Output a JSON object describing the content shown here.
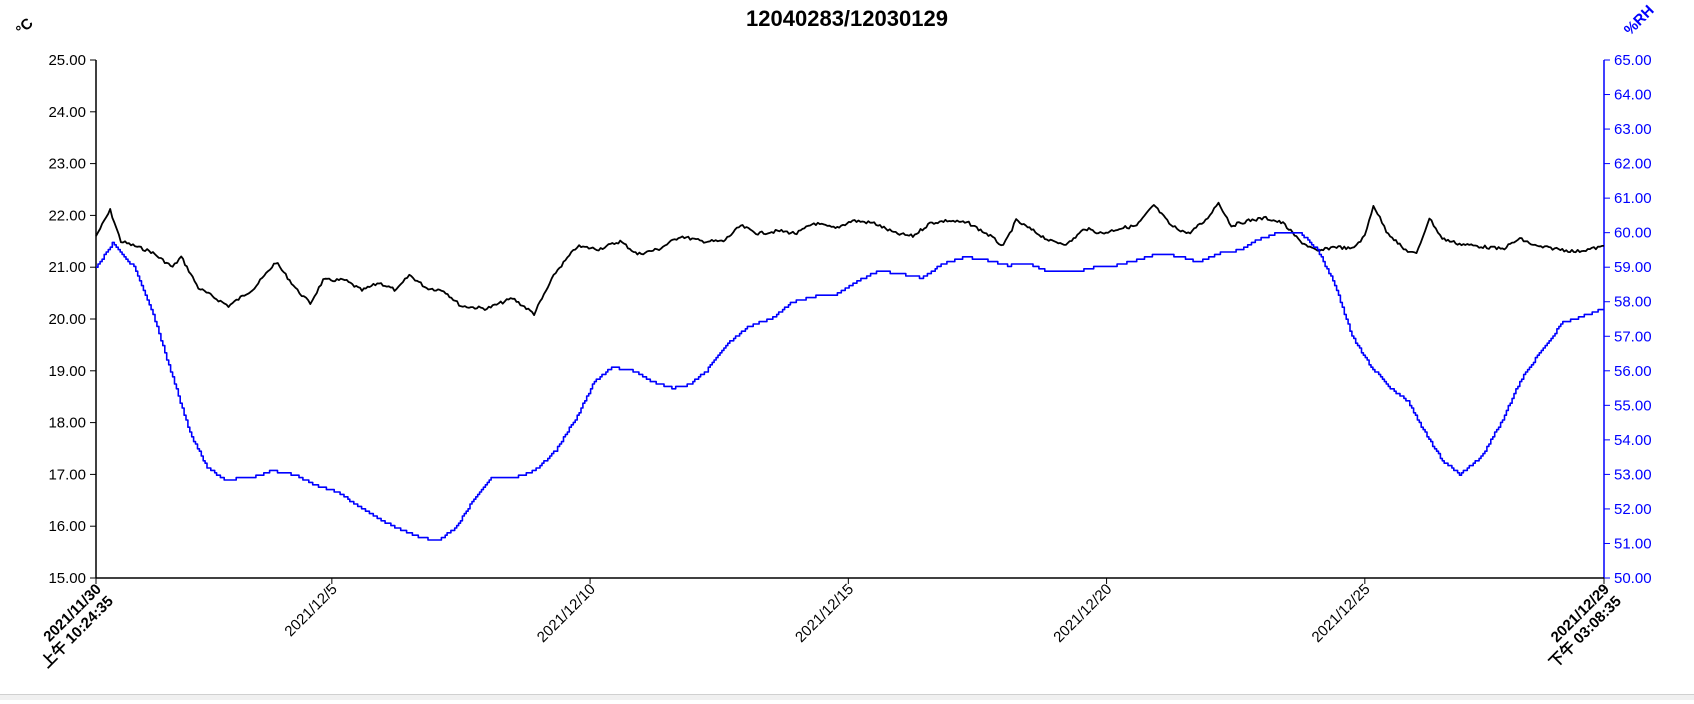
{
  "chart_data": {
    "type": "line",
    "title": "12040283/12030129",
    "y_left": {
      "unit": "°C",
      "range": [
        15,
        25
      ],
      "ticks": [
        "15.00",
        "16.00",
        "17.00",
        "18.00",
        "19.00",
        "20.00",
        "21.00",
        "22.00",
        "23.00",
        "24.00",
        "25.00"
      ],
      "color": "#000000"
    },
    "y_right": {
      "unit": "%RH",
      "range": [
        50,
        65
      ],
      "ticks": [
        "50.00",
        "51.00",
        "52.00",
        "53.00",
        "54.00",
        "55.00",
        "56.00",
        "57.00",
        "58.00",
        "59.00",
        "60.00",
        "61.00",
        "62.00",
        "63.00",
        "64.00",
        "65.00"
      ],
      "color": "#0000ff"
    },
    "x_range": [
      "2021/11/30 10:24:35",
      "2021/12/29 15:08:35"
    ],
    "x_labels": [
      {
        "date": "2021/11/30 10:24:35",
        "line1": "2021/11/30",
        "line2": "上午 10:24:35",
        "bold": true
      },
      {
        "date": "2021/12/5 00:00:00",
        "line1": "2021/12/5",
        "line2": "",
        "bold": false
      },
      {
        "date": "2021/12/10 00:00:00",
        "line1": "2021/12/10",
        "line2": "",
        "bold": false
      },
      {
        "date": "2021/12/15 00:00:00",
        "line1": "2021/12/15",
        "line2": "",
        "bold": false
      },
      {
        "date": "2021/12/20 00:00:00",
        "line1": "2021/12/20",
        "line2": "",
        "bold": false
      },
      {
        "date": "2021/12/25 00:00:00",
        "line1": "2021/12/25",
        "line2": "",
        "bold": false
      },
      {
        "date": "2021/12/29 15:08:35",
        "line1": "2021/12/29",
        "line2": "下午 03:08:35",
        "bold": true
      }
    ],
    "series": [
      {
        "axis": "left",
        "color": "#000000",
        "points": [
          [
            "2021/11/30 10:24:35",
            21.6
          ],
          [
            "2021/11/30 17:00:00",
            22.1
          ],
          [
            "2021/11/30 22:00:00",
            21.5
          ],
          [
            "2021/12/1 12:00:00",
            21.3
          ],
          [
            "2021/12/1 22:00:00",
            21.0
          ],
          [
            "2021/12/2 02:00:00",
            21.2
          ],
          [
            "2021/12/2 10:00:00",
            20.6
          ],
          [
            "2021/12/3 00:00:00",
            20.25
          ],
          [
            "2021/12/3 12:00:00",
            20.6
          ],
          [
            "2021/12/3 22:00:00",
            21.1
          ],
          [
            "2021/12/4 08:00:00",
            20.55
          ],
          [
            "2021/12/4 14:00:00",
            20.3
          ],
          [
            "2021/12/4 20:00:00",
            20.75
          ],
          [
            "2021/12/5 06:00:00",
            20.75
          ],
          [
            "2021/12/5 14:00:00",
            20.55
          ],
          [
            "2021/12/5 22:00:00",
            20.7
          ],
          [
            "2021/12/6 06:00:00",
            20.55
          ],
          [
            "2021/12/6 12:00:00",
            20.85
          ],
          [
            "2021/12/6 20:00:00",
            20.6
          ],
          [
            "2021/12/7 04:00:00",
            20.55
          ],
          [
            "2021/12/7 12:00:00",
            20.25
          ],
          [
            "2021/12/8 00:00:00",
            20.2
          ],
          [
            "2021/12/8 12:00:00",
            20.4
          ],
          [
            "2021/12/8 22:00:00",
            20.1
          ],
          [
            "2021/12/9 08:00:00",
            20.9
          ],
          [
            "2021/12/9 18:00:00",
            21.4
          ],
          [
            "2021/12/10 04:00:00",
            21.35
          ],
          [
            "2021/12/10 14:00:00",
            21.5
          ],
          [
            "2021/12/10 22:00:00",
            21.25
          ],
          [
            "2021/12/11 08:00:00",
            21.35
          ],
          [
            "2021/12/11 18:00:00",
            21.6
          ],
          [
            "2021/12/12 04:00:00",
            21.5
          ],
          [
            "2021/12/12 14:00:00",
            21.5
          ],
          [
            "2021/12/12 22:00:00",
            21.8
          ],
          [
            "2021/12/13 06:00:00",
            21.65
          ],
          [
            "2021/12/13 16:00:00",
            21.7
          ],
          [
            "2021/12/14 00:00:00",
            21.65
          ],
          [
            "2021/12/14 08:00:00",
            21.85
          ],
          [
            "2021/12/14 18:00:00",
            21.75
          ],
          [
            "2021/12/15 02:00:00",
            21.9
          ],
          [
            "2021/12/15 12:00:00",
            21.85
          ],
          [
            "2021/12/15 22:00:00",
            21.65
          ],
          [
            "2021/12/16 06:00:00",
            21.6
          ],
          [
            "2021/12/16 14:00:00",
            21.85
          ],
          [
            "2021/12/16 22:00:00",
            21.9
          ],
          [
            "2021/12/17 08:00:00",
            21.85
          ],
          [
            "2021/12/17 18:00:00",
            21.6
          ],
          [
            "2021/12/18 00:00:00",
            21.4
          ],
          [
            "2021/12/18 06:00:00",
            21.9
          ],
          [
            "2021/12/18 14:00:00",
            21.7
          ],
          [
            "2021/12/18 22:00:00",
            21.5
          ],
          [
            "2021/12/19 06:00:00",
            21.45
          ],
          [
            "2021/12/19 14:00:00",
            21.75
          ],
          [
            "2021/12/19 22:00:00",
            21.65
          ],
          [
            "2021/12/20 06:00:00",
            21.75
          ],
          [
            "2021/12/20 14:00:00",
            21.8
          ],
          [
            "2021/12/20 22:00:00",
            22.2
          ],
          [
            "2021/12/21 06:00:00",
            21.8
          ],
          [
            "2021/12/21 14:00:00",
            21.65
          ],
          [
            "2021/12/21 22:00:00",
            21.9
          ],
          [
            "2021/12/22 04:00:00",
            22.25
          ],
          [
            "2021/12/22 10:00:00",
            21.8
          ],
          [
            "2021/12/22 18:00:00",
            21.9
          ],
          [
            "2021/12/23 02:00:00",
            21.95
          ],
          [
            "2021/12/23 10:00:00",
            21.85
          ],
          [
            "2021/12/23 18:00:00",
            21.5
          ],
          [
            "2021/12/24 02:00:00",
            21.3
          ],
          [
            "2021/12/24 10:00:00",
            21.4
          ],
          [
            "2021/12/24 18:00:00",
            21.35
          ],
          [
            "2021/12/25 00:00:00",
            21.6
          ],
          [
            "2021/12/25 04:00:00",
            22.2
          ],
          [
            "2021/12/25 10:00:00",
            21.7
          ],
          [
            "2021/12/25 18:00:00",
            21.35
          ],
          [
            "2021/12/26 00:00:00",
            21.25
          ],
          [
            "2021/12/26 06:00:00",
            21.95
          ],
          [
            "2021/12/26 12:00:00",
            21.55
          ],
          [
            "2021/12/26 20:00:00",
            21.45
          ],
          [
            "2021/12/27 06:00:00",
            21.4
          ],
          [
            "2021/12/27 16:00:00",
            21.35
          ],
          [
            "2021/12/28 00:00:00",
            21.55
          ],
          [
            "2021/12/28 08:00:00",
            21.4
          ],
          [
            "2021/12/28 18:00:00",
            21.35
          ],
          [
            "2021/12/29 02:00:00",
            21.3
          ],
          [
            "2021/12/29 15:08:35",
            21.4
          ]
        ]
      },
      {
        "axis": "right",
        "color": "#0000ff",
        "points": [
          [
            "2021/11/30 10:24:35",
            59.0
          ],
          [
            "2021/11/30 18:00:00",
            59.7
          ],
          [
            "2021/12/1 04:00:00",
            59.0
          ],
          [
            "2021/12/1 12:00:00",
            57.8
          ],
          [
            "2021/12/1 22:00:00",
            55.8
          ],
          [
            "2021/12/2 06:00:00",
            54.2
          ],
          [
            "2021/12/2 14:00:00",
            53.2
          ],
          [
            "2021/12/2 22:00:00",
            52.85
          ],
          [
            "2021/12/3 10:00:00",
            52.9
          ],
          [
            "2021/12/3 20:00:00",
            53.1
          ],
          [
            "2021/12/4 06:00:00",
            53.0
          ],
          [
            "2021/12/4 16:00:00",
            52.7
          ],
          [
            "2021/12/5 02:00:00",
            52.5
          ],
          [
            "2021/12/5 12:00:00",
            52.1
          ],
          [
            "2021/12/5 22:00:00",
            51.7
          ],
          [
            "2021/12/6 08:00:00",
            51.4
          ],
          [
            "2021/12/6 18:00:00",
            51.15
          ],
          [
            "2021/12/7 02:00:00",
            51.1
          ],
          [
            "2021/12/7 10:00:00",
            51.5
          ],
          [
            "2021/12/7 18:00:00",
            52.3
          ],
          [
            "2021/12/8 02:00:00",
            52.9
          ],
          [
            "2021/12/8 12:00:00",
            52.9
          ],
          [
            "2021/12/8 22:00:00",
            53.1
          ],
          [
            "2021/12/9 08:00:00",
            53.7
          ],
          [
            "2021/12/9 18:00:00",
            54.7
          ],
          [
            "2021/12/10 02:00:00",
            55.7
          ],
          [
            "2021/12/10 10:00:00",
            56.1
          ],
          [
            "2021/12/10 20:00:00",
            56.0
          ],
          [
            "2021/12/11 04:00:00",
            55.7
          ],
          [
            "2021/12/11 14:00:00",
            55.5
          ],
          [
            "2021/12/11 22:00:00",
            55.6
          ],
          [
            "2021/12/12 06:00:00",
            56.0
          ],
          [
            "2021/12/12 16:00:00",
            56.8
          ],
          [
            "2021/12/13 02:00:00",
            57.3
          ],
          [
            "2021/12/13 12:00:00",
            57.5
          ],
          [
            "2021/12/13 22:00:00",
            58.0
          ],
          [
            "2021/12/14 08:00:00",
            58.15
          ],
          [
            "2021/12/14 18:00:00",
            58.2
          ],
          [
            "2021/12/15 04:00:00",
            58.6
          ],
          [
            "2021/12/15 14:00:00",
            58.9
          ],
          [
            "2021/12/16 00:00:00",
            58.8
          ],
          [
            "2021/12/16 10:00:00",
            58.7
          ],
          [
            "2021/12/16 20:00:00",
            59.1
          ],
          [
            "2021/12/17 06:00:00",
            59.3
          ],
          [
            "2021/12/17 16:00:00",
            59.2
          ],
          [
            "2021/12/18 02:00:00",
            59.05
          ],
          [
            "2021/12/18 12:00:00",
            59.1
          ],
          [
            "2021/12/18 22:00:00",
            58.85
          ],
          [
            "2021/12/19 08:00:00",
            58.85
          ],
          [
            "2021/12/19 18:00:00",
            59.0
          ],
          [
            "2021/12/20 04:00:00",
            59.05
          ],
          [
            "2021/12/20 14:00:00",
            59.2
          ],
          [
            "2021/12/21 00:00:00",
            59.4
          ],
          [
            "2021/12/21 10:00:00",
            59.3
          ],
          [
            "2021/12/21 18:00:00",
            59.15
          ],
          [
            "2021/12/22 04:00:00",
            59.4
          ],
          [
            "2021/12/22 14:00:00",
            59.5
          ],
          [
            "2021/12/22 22:00:00",
            59.8
          ],
          [
            "2021/12/23 08:00:00",
            60.0
          ],
          [
            "2021/12/23 18:00:00",
            60.0
          ],
          [
            "2021/12/24 02:00:00",
            59.5
          ],
          [
            "2021/12/24 10:00:00",
            58.5
          ],
          [
            "2021/12/24 18:00:00",
            57.0
          ],
          [
            "2021/12/25 02:00:00",
            56.2
          ],
          [
            "2021/12/25 10:00:00",
            55.6
          ],
          [
            "2021/12/25 20:00:00",
            55.1
          ],
          [
            "2021/12/26 04:00:00",
            54.2
          ],
          [
            "2021/12/26 12:00:00",
            53.4
          ],
          [
            "2021/12/26 20:00:00",
            53.0
          ],
          [
            "2021/12/27 06:00:00",
            53.5
          ],
          [
            "2021/12/27 16:00:00",
            54.6
          ],
          [
            "2021/12/28 00:00:00",
            55.7
          ],
          [
            "2021/12/28 10:00:00",
            56.6
          ],
          [
            "2021/12/28 20:00:00",
            57.4
          ],
          [
            "2021/12/29 06:00:00",
            57.6
          ],
          [
            "2021/12/29 15:08:35",
            57.8
          ]
        ]
      }
    ]
  }
}
